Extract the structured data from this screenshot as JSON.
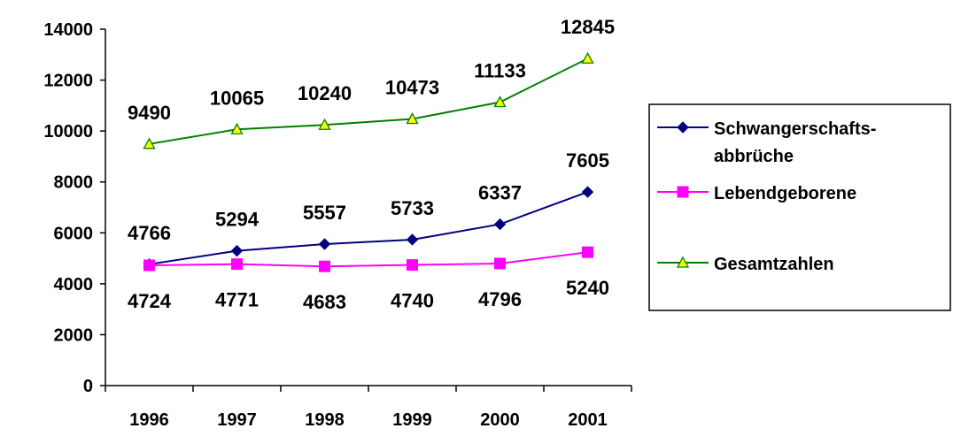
{
  "chart_data": {
    "type": "line",
    "categories": [
      "1996",
      "1997",
      "1998",
      "1999",
      "2000",
      "2001"
    ],
    "ylim": [
      0,
      14000
    ],
    "yticks": [
      0,
      2000,
      4000,
      6000,
      8000,
      10000,
      12000,
      14000
    ],
    "grid": false,
    "legend_position": "right",
    "series": [
      {
        "name": "Schwangerschafts-abbrüche",
        "name_lines": [
          "Schwangerschafts-",
          "abbrüche"
        ],
        "values": [
          4766,
          5294,
          5557,
          5733,
          6337,
          7605
        ],
        "labels": [
          "4766",
          "5294",
          "5557",
          "5733",
          "6337",
          "7605"
        ],
        "color": "#000080",
        "marker": "diamond"
      },
      {
        "name": "Lebendgeborene",
        "name_lines": [
          "Lebendgeborene"
        ],
        "values": [
          4724,
          4771,
          4683,
          4740,
          4796,
          5240
        ],
        "labels": [
          "4724",
          "4771",
          "4683",
          "4740",
          "4796",
          "5240"
        ],
        "color": "#FF00FF",
        "marker": "square"
      },
      {
        "name": "Gesamtzahlen",
        "name_lines": [
          "Gesamtzahlen"
        ],
        "values": [
          9490,
          10065,
          10240,
          10473,
          11133,
          12845
        ],
        "labels": [
          "9490",
          "10065",
          "10240",
          "10473",
          "11133",
          "12845"
        ],
        "color": "#008000",
        "marker_fill": "#FFFF00",
        "marker": "triangle"
      }
    ]
  }
}
